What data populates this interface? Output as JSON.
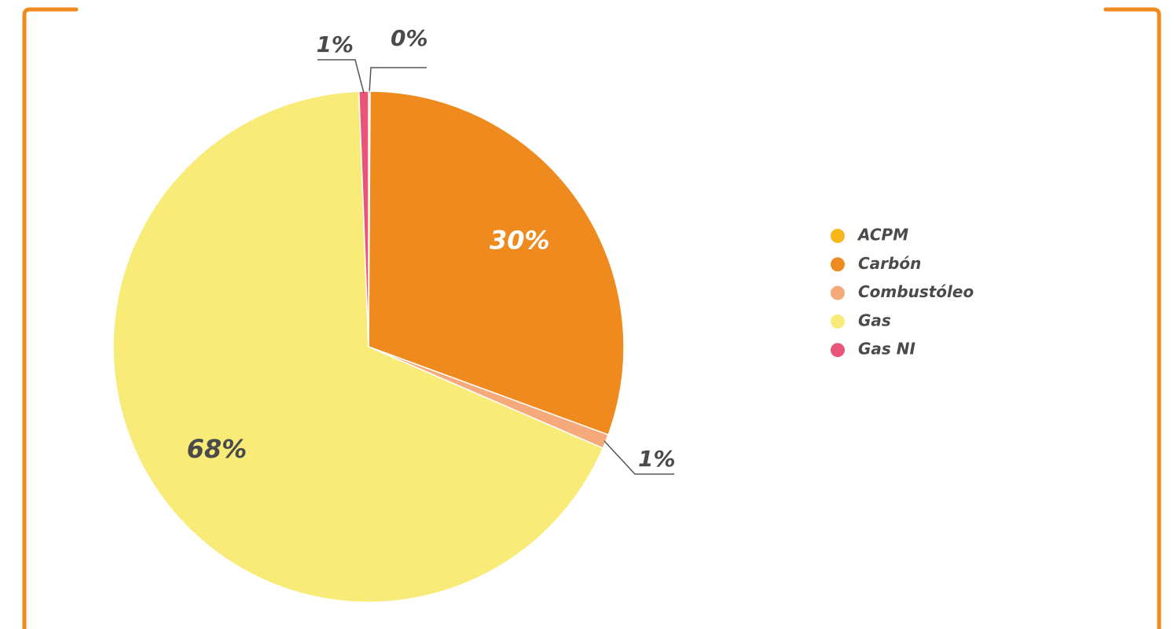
{
  "chart_data": {
    "type": "pie",
    "categories": [
      "ACPM",
      "Carbón",
      "Combustóleo",
      "Gas",
      "Gas NI"
    ],
    "values": [
      0.1,
      30.5,
      0.9,
      67.9,
      0.6
    ],
    "value_labels": [
      "0%",
      "30%",
      "1%",
      "68%",
      "1%"
    ],
    "colors": [
      "#f7b719",
      "#ef8a1e",
      "#f6a97a",
      "#f9eb78",
      "#e85578"
    ],
    "legend": "right"
  }
}
